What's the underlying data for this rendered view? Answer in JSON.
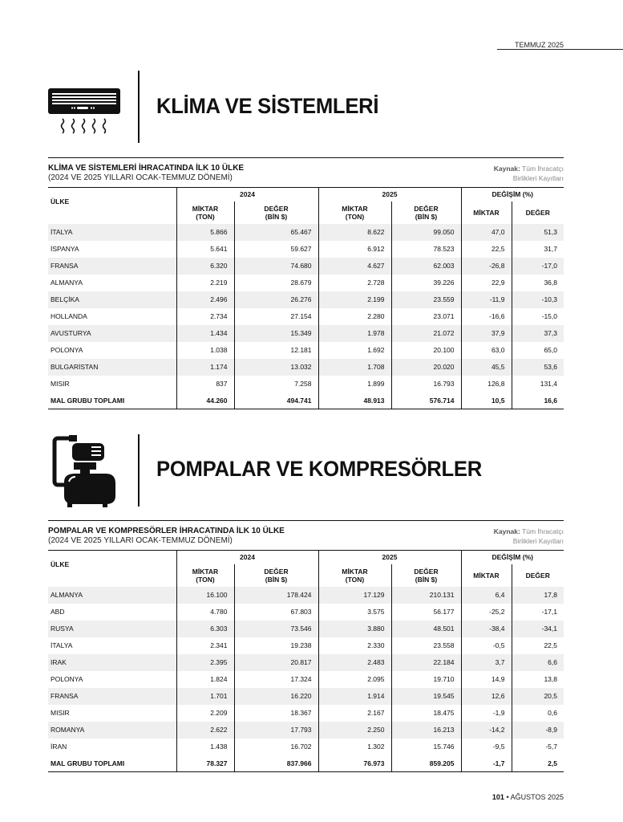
{
  "header": {
    "month": "TEMMUZ 2025"
  },
  "footer": {
    "page": "101",
    "separator": "•",
    "issue": "AĞUSTOS 2025"
  },
  "columns": {
    "country": "ÜLKE",
    "y2024": "2024",
    "y2025": "2025",
    "change": "DEĞİŞİM (%)",
    "qty": "MİKTAR",
    "qty_unit": "(TON)",
    "val": "DEĞER",
    "val_unit": "(BİN $)",
    "chg_qty": "MİKTAR",
    "chg_val": "DEĞER"
  },
  "source": {
    "label": "Kaynak:",
    "line1": "Tüm İhracatçı",
    "line2": "Birlikleri Kayıtları"
  },
  "sections": [
    {
      "title": "KLİMA VE SİSTEMLERİ",
      "icon": "air-conditioner-icon",
      "table_title": "KLİMA VE SİSTEMLERİ İHRACATINDA İLK 10 ÜLKE",
      "table_subtitle": "(2024 VE 2025 YILLARI OCAK-TEMMUZ DÖNEMİ)",
      "rows": [
        [
          "İTALYA",
          "5.866",
          "65.467",
          "8.622",
          "99.050",
          "47,0",
          "51,3"
        ],
        [
          "İSPANYA",
          "5.641",
          "59.627",
          "6.912",
          "78.523",
          "22,5",
          "31,7"
        ],
        [
          "FRANSA",
          "6.320",
          "74.680",
          "4.627",
          "62.003",
          "-26,8",
          "-17,0"
        ],
        [
          "ALMANYA",
          "2.219",
          "28.679",
          "2.728",
          "39.226",
          "22,9",
          "36,8"
        ],
        [
          "BELÇİKA",
          "2.496",
          "26.276",
          "2.199",
          "23.559",
          "-11,9",
          "-10,3"
        ],
        [
          "HOLLANDA",
          "2.734",
          "27.154",
          "2.280",
          "23.071",
          "-16,6",
          "-15,0"
        ],
        [
          "AVUSTURYA",
          "1.434",
          "15.349",
          "1.978",
          "21.072",
          "37,9",
          "37,3"
        ],
        [
          "POLONYA",
          "1.038",
          "12.181",
          "1.692",
          "20.100",
          "63,0",
          "65,0"
        ],
        [
          "BULGARİSTAN",
          "1.174",
          "13.032",
          "1.708",
          "20.020",
          "45,5",
          "53,6"
        ],
        [
          "MISIR",
          "837",
          "7.258",
          "1.899",
          "16.793",
          "126,8",
          "131,4"
        ]
      ],
      "total": [
        "MAL GRUBU TOPLAMI",
        "44.260",
        "494.741",
        "48.913",
        "576.714",
        "10,5",
        "16,6"
      ]
    },
    {
      "title": "POMPALAR VE KOMPRESÖRLER",
      "icon": "water-pump-icon",
      "table_title": "POMPALAR VE KOMPRESÖRLER İHRACATINDA İLK 10 ÜLKE",
      "table_subtitle": "(2024 VE 2025 YILLARI OCAK-TEMMUZ DÖNEMİ)",
      "rows": [
        [
          "ALMANYA",
          "16.100",
          "178.424",
          "17.129",
          "210.131",
          "6,4",
          "17,8"
        ],
        [
          "ABD",
          "4.780",
          "67.803",
          "3.575",
          "56.177",
          "-25,2",
          "-17,1"
        ],
        [
          "RUSYA",
          "6.303",
          "73.546",
          "3.880",
          "48.501",
          "-38,4",
          "-34,1"
        ],
        [
          "İTALYA",
          "2.341",
          "19.238",
          "2.330",
          "23.558",
          "-0,5",
          "22,5"
        ],
        [
          "IRAK",
          "2.395",
          "20.817",
          "2.483",
          "22.184",
          "3,7",
          "6,6"
        ],
        [
          "POLONYA",
          "1.824",
          "17.324",
          "2.095",
          "19.710",
          "14,9",
          "13,8"
        ],
        [
          "FRANSA",
          "1.701",
          "16.220",
          "1.914",
          "19.545",
          "12,6",
          "20,5"
        ],
        [
          "MISIR",
          "2.209",
          "18.367",
          "2.167",
          "18.475",
          "-1,9",
          "0,6"
        ],
        [
          "ROMANYA",
          "2.622",
          "17.793",
          "2.250",
          "16.213",
          "-14,2",
          "-8,9"
        ],
        [
          "İRAN",
          "1.438",
          "16.702",
          "1.302",
          "15.746",
          "-9,5",
          "-5,7"
        ]
      ],
      "total": [
        "MAL GRUBU TOPLAMI",
        "78.327",
        "837.966",
        "76.973",
        "859.205",
        "-1,7",
        "2,5"
      ]
    }
  ]
}
